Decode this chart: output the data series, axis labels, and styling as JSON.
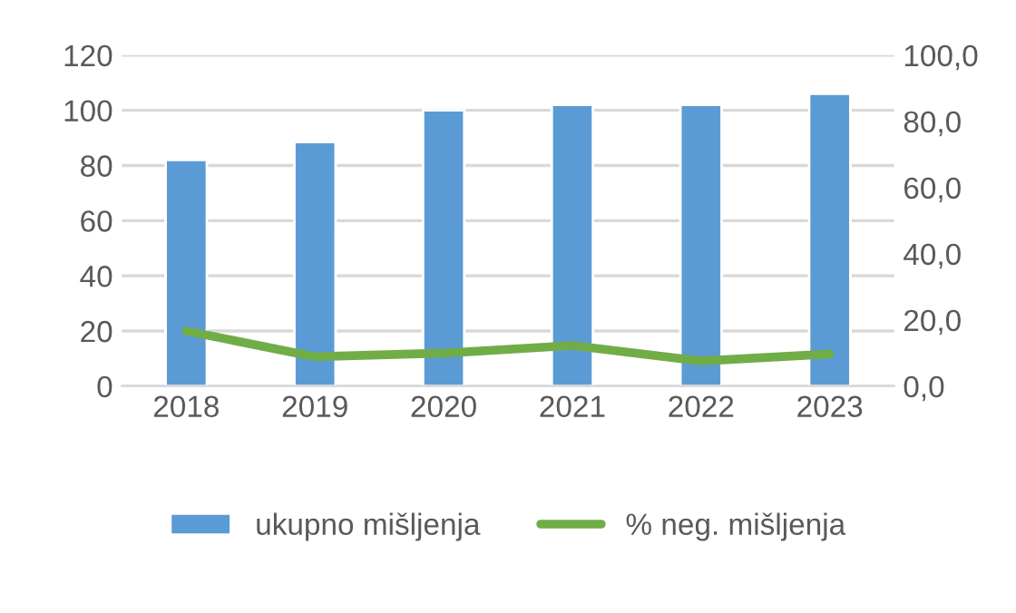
{
  "chart_data": {
    "type": "bar",
    "categories": [
      "2018",
      "2019",
      "2020",
      "2021",
      "2022",
      "2023"
    ],
    "series": [
      {
        "name": "ukupno mišljenja",
        "color": "#5b9bd5",
        "values": [
          82,
          88.5,
          100,
          102,
          102,
          106
        ]
      },
      {
        "name": "% neg. mišljenja",
        "color": "#70ad47",
        "type": "line",
        "axis": "y2",
        "values": [
          16.7,
          8.9,
          10.0,
          12.3,
          7.6,
          9.7
        ]
      }
    ],
    "ylim": [
      0,
      120
    ],
    "yticks": [
      0,
      20,
      40,
      60,
      80,
      100,
      120
    ],
    "y2lim": [
      0,
      100
    ],
    "y2ticks": [
      {
        "value": 0,
        "label": "0,0"
      },
      {
        "value": 20,
        "label": "20,0"
      },
      {
        "value": 40,
        "label": "40,0"
      },
      {
        "value": 60,
        "label": "60,0"
      },
      {
        "value": 80,
        "label": "80,0"
      },
      {
        "value": 100,
        "label": "100,0"
      }
    ],
    "grid": "y",
    "legend": "bottom",
    "marker": "none"
  }
}
